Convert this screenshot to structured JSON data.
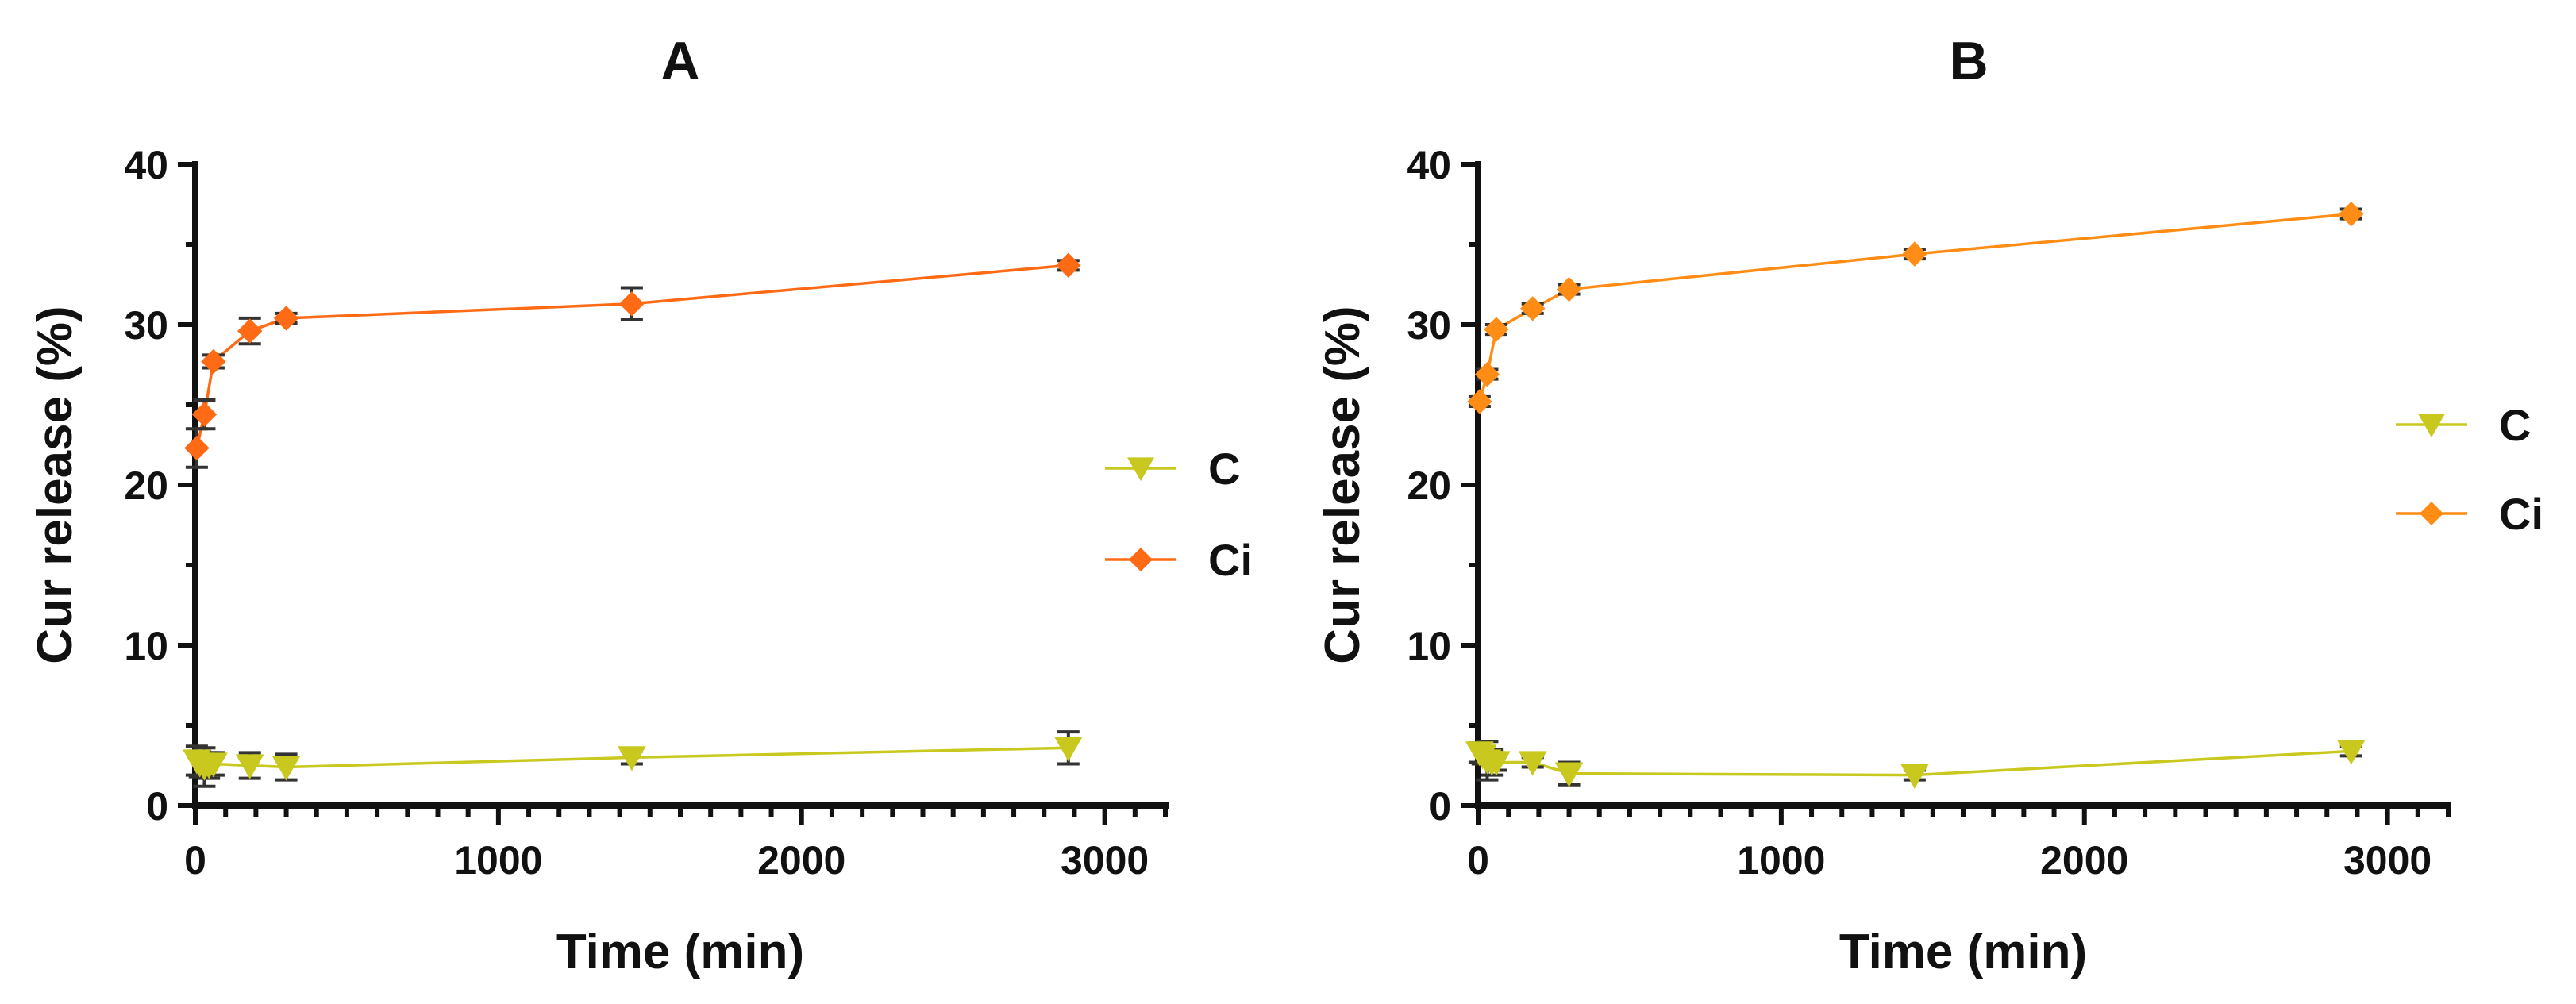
{
  "chart_data": [
    {
      "type": "line",
      "title": "A",
      "xlabel": "Time (min)",
      "ylabel": "Cur release (%)",
      "xlim": [
        0,
        3200
      ],
      "ylim": [
        0,
        40
      ],
      "xticks": [
        "0",
        "1000",
        "2000",
        "3000"
      ],
      "yticks": [
        "0",
        "10",
        "20",
        "30",
        "40"
      ],
      "legend_position": "right",
      "series": [
        {
          "name": "C",
          "color": "#c8c81e",
          "marker": "triangle-down",
          "x": [
            5,
            15,
            30,
            45,
            60,
            180,
            300,
            1440,
            2880
          ],
          "values": [
            2.8,
            2.6,
            2.4,
            2.5,
            2.6,
            2.5,
            2.4,
            3.0,
            3.6
          ],
          "errors": [
            0.9,
            0.8,
            1.2,
            0.8,
            0.7,
            0.8,
            0.8,
            0.4,
            1.0
          ]
        },
        {
          "name": "Ci",
          "color": "#ff6a14",
          "marker": "diamond",
          "x": [
            5,
            30,
            60,
            180,
            300,
            1440,
            2880
          ],
          "values": [
            22.3,
            24.4,
            27.7,
            29.6,
            30.4,
            31.3,
            33.7
          ],
          "errors": [
            1.2,
            0.9,
            0.4,
            0.8,
            0.3,
            1.0,
            0.3
          ]
        }
      ]
    },
    {
      "type": "line",
      "title": "B",
      "xlabel": "Time (min)",
      "ylabel": "Cur release (%)",
      "xlim": [
        0,
        3200
      ],
      "ylim": [
        0,
        40
      ],
      "xticks": [
        "0",
        "1000",
        "2000",
        "3000"
      ],
      "yticks": [
        "0",
        "10",
        "20",
        "30",
        "40"
      ],
      "legend_position": "right",
      "series": [
        {
          "name": "C",
          "color": "#c8c81e",
          "marker": "triangle-down",
          "x": [
            5,
            15,
            30,
            45,
            60,
            180,
            300,
            1440,
            2880
          ],
          "values": [
            3.3,
            3.1,
            2.8,
            2.7,
            2.7,
            2.7,
            2.0,
            1.9,
            3.4
          ],
          "errors": [
            0.6,
            0.5,
            1.2,
            0.8,
            0.5,
            0.3,
            0.7,
            0.3,
            0.3
          ]
        },
        {
          "name": "Ci",
          "color": "#ff8c14",
          "marker": "diamond",
          "x": [
            5,
            30,
            60,
            180,
            300,
            1440,
            2880
          ],
          "values": [
            25.2,
            26.9,
            29.7,
            31.0,
            32.2,
            34.4,
            36.9
          ],
          "errors": [
            0.3,
            0.3,
            0.3,
            0.3,
            0.3,
            0.3,
            0.3
          ]
        }
      ]
    }
  ]
}
